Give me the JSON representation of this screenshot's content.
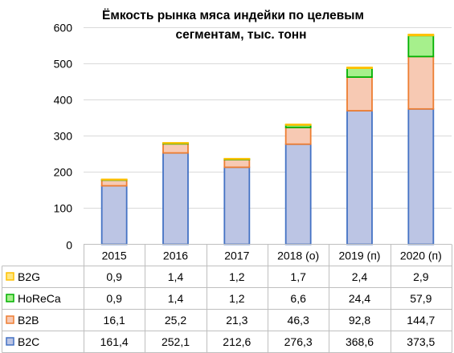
{
  "chart_data": {
    "type": "bar",
    "stacked": true,
    "title_lines": [
      "Ёмкость рынка мяса индейки по целевым",
      "сегментам, тыс. тонн"
    ],
    "categories": [
      "2015",
      "2016",
      "2017",
      "2018 (о)",
      "2019 (п)",
      "2020 (п)"
    ],
    "ylim": [
      0,
      600
    ],
    "yticks": [
      0,
      100,
      200,
      300,
      400,
      500,
      600
    ],
    "ytick_labels": [
      "0",
      "100",
      "200",
      "300",
      "400",
      "500",
      "600"
    ],
    "grid": true,
    "legend_placement": "data-table-left",
    "series": [
      {
        "name": "B2C",
        "values": [
          161.4,
          252.1,
          212.6,
          276.3,
          368.6,
          373.5
        ],
        "labels": [
          "161,4",
          "252,1",
          "212,6",
          "276,3",
          "368,6",
          "373,5"
        ],
        "fill": "#bcc5e4",
        "stroke": "#4472c4"
      },
      {
        "name": "B2B",
        "values": [
          16.1,
          25.2,
          21.3,
          46.3,
          92.8,
          144.7
        ],
        "labels": [
          "16,1",
          "25,2",
          "21,3",
          "46,3",
          "92,8",
          "144,7"
        ],
        "fill": "#f7c9b3",
        "stroke": "#ed7d31"
      },
      {
        "name": "HoReCa",
        "values": [
          0.9,
          1.4,
          1.2,
          6.6,
          24.4,
          57.9
        ],
        "labels": [
          "0,9",
          "1,4",
          "1,2",
          "6,6",
          "24,4",
          "57,9"
        ],
        "fill": "#a6f08c",
        "stroke": "#00b000"
      },
      {
        "name": "B2G",
        "values": [
          0.9,
          1.4,
          1.2,
          1.7,
          2.4,
          2.9
        ],
        "labels": [
          "0,9",
          "1,4",
          "1,2",
          "1,7",
          "2,4",
          "2,9"
        ],
        "fill": "#ffe680",
        "stroke": "#ffc000"
      }
    ],
    "table_row_order": [
      "B2G",
      "HoReCa",
      "B2B",
      "B2C"
    ]
  },
  "colors": {
    "grid": "#d9d9d9",
    "axis": "#bfbfbf"
  }
}
